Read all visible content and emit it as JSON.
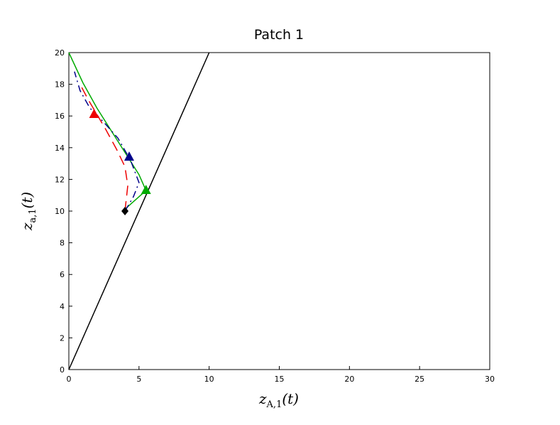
{
  "chart_data": {
    "type": "line",
    "title": "Patch 1",
    "xlabel": {
      "base": "z",
      "sub": "A,1",
      "tail": "(t)"
    },
    "ylabel": {
      "base": "z",
      "sub": "a,1",
      "tail": "(t)"
    },
    "xlim": [
      0,
      30
    ],
    "xticks": [
      0,
      5,
      10,
      15,
      20,
      25,
      30
    ],
    "ylim": [
      0,
      20
    ],
    "yticks": [
      0,
      2,
      4,
      6,
      8,
      10,
      12,
      14,
      16,
      18,
      20
    ],
    "series": [
      {
        "color": "#000000",
        "style": "solid",
        "x": [
          0,
          10
        ],
        "values": [
          0,
          20
        ]
      },
      {
        "color": "#00aa00",
        "style": "solid",
        "x": [
          0,
          1,
          2,
          3,
          4,
          5,
          5.5,
          4.1
        ],
        "values": [
          20,
          18.1,
          16.5,
          15.1,
          13.7,
          12.3,
          11.3,
          10.2
        ]
      },
      {
        "color": "#00008b",
        "style": "dashdot",
        "x": [
          4,
          4.6,
          5,
          4.4,
          3.5,
          2.5,
          1.5,
          0.8,
          0.4
        ],
        "values": [
          10,
          10.9,
          11.8,
          13.2,
          14.6,
          15.6,
          16.5,
          17.6,
          18.8
        ]
      },
      {
        "color": "#ee0000",
        "style": "dashed",
        "x": [
          4,
          4.2,
          4,
          3.4,
          2.6,
          2,
          1.4,
          0.8
        ],
        "values": [
          10,
          11.6,
          12.8,
          13.9,
          15.2,
          16.1,
          17.0,
          18.0
        ]
      }
    ],
    "points": [
      {
        "x": 4,
        "y": 10,
        "color": "#000000",
        "shape": "diamond"
      },
      {
        "x": 1.8,
        "y": 16.1,
        "color": "#ee0000",
        "shape": "triangle"
      },
      {
        "x": 4.3,
        "y": 13.4,
        "color": "#00008b",
        "shape": "triangle"
      },
      {
        "x": 5.5,
        "y": 11.3,
        "color": "#00aa00",
        "shape": "triangle"
      }
    ]
  }
}
